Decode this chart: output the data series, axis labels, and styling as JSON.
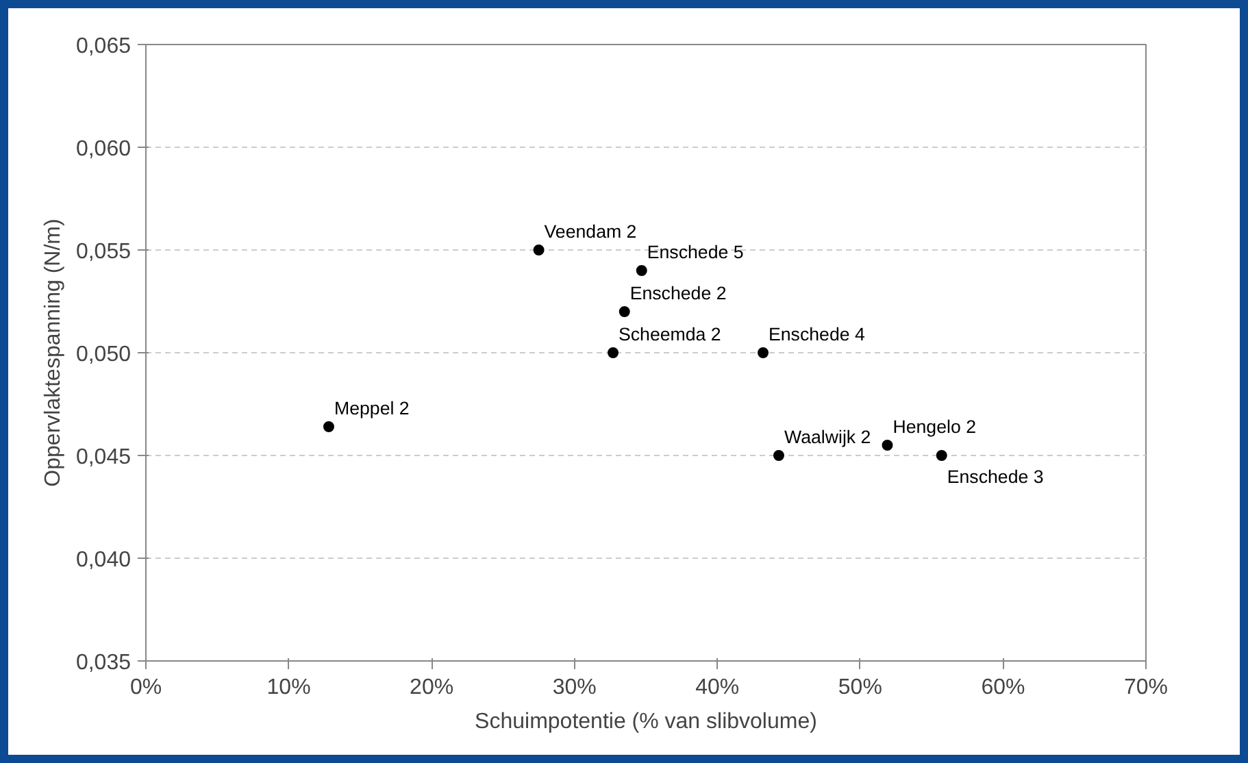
{
  "chart_data": {
    "type": "scatter",
    "xlabel": "Schuimpotentie (% van slibvolume)",
    "ylabel": "Oppervlaktespanning (N/m)",
    "x": [
      27.5,
      34.7,
      33.5,
      32.7,
      43.2,
      12.8,
      44.3,
      51.9,
      55.7
    ],
    "series": [
      {
        "color": "#000000",
        "values": [
          0.055,
          0.054,
          0.052,
          0.05,
          0.05,
          0.0464,
          0.045,
          0.0455,
          0.045
        ]
      }
    ],
    "annotations": [
      {
        "text": "Veendam 2",
        "x": 27.5,
        "y": 0.055
      },
      {
        "text": "Enschede 5",
        "x": 34.7,
        "y": 0.054
      },
      {
        "text": "Enschede 2",
        "x": 33.5,
        "y": 0.052
      },
      {
        "text": "Scheemda 2",
        "x": 32.7,
        "y": 0.05
      },
      {
        "text": "Enschede 4",
        "x": 43.2,
        "y": 0.05
      },
      {
        "text": "Meppel 2",
        "x": 12.8,
        "y": 0.0464
      },
      {
        "text": "Waalwijk 2",
        "x": 44.3,
        "y": 0.045
      },
      {
        "text": "Hengelo 2",
        "x": 51.9,
        "y": 0.0455
      },
      {
        "text": "Enschede 3",
        "x": 55.7,
        "y": 0.045
      }
    ],
    "xlim": [
      0,
      70
    ],
    "xticks": [
      {
        "value": 0,
        "label": "0%"
      },
      {
        "value": 10,
        "label": "10%"
      },
      {
        "value": 20,
        "label": "20%"
      },
      {
        "value": 30,
        "label": "30%"
      },
      {
        "value": 40,
        "label": "40%"
      },
      {
        "value": 50,
        "label": "50%"
      },
      {
        "value": 60,
        "label": "60%"
      },
      {
        "value": 70,
        "label": "70%"
      }
    ],
    "ylim": [
      0.035,
      0.065
    ],
    "yticks": [
      {
        "value": 0.035,
        "label": "0,035"
      },
      {
        "value": 0.04,
        "label": "0,040"
      },
      {
        "value": 0.045,
        "label": "0,045"
      },
      {
        "value": 0.05,
        "label": "0,050"
      },
      {
        "value": 0.055,
        "label": "0,055"
      },
      {
        "value": 0.06,
        "label": "0,060"
      },
      {
        "value": 0.065,
        "label": "0,065"
      }
    ],
    "grid": "y",
    "marker": "circle"
  }
}
